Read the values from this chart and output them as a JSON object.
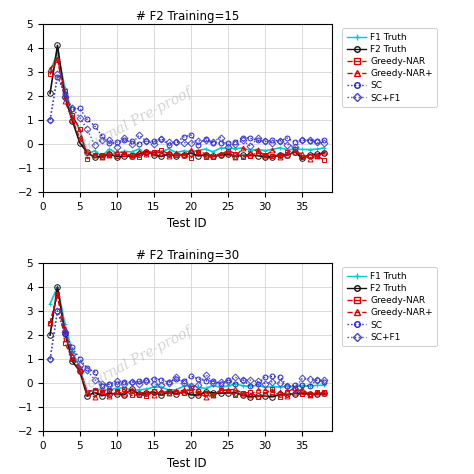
{
  "title1": "# F2 Training=15",
  "title2": "# F2 Training=30",
  "xlabel": "Test ID",
  "ylim": [
    -2,
    5
  ],
  "xlim": [
    0.5,
    39
  ],
  "xticks": [
    0,
    5,
    10,
    15,
    20,
    25,
    30,
    35
  ],
  "yticks": [
    -2,
    -1,
    0,
    1,
    2,
    3,
    4,
    5
  ],
  "legend_labels": [
    "F1 Truth",
    "F2 Truth",
    "Greedy-NAR",
    "Greedy-NAR+",
    "SC",
    "SC+F1"
  ],
  "colors": {
    "F1 Truth": "#00d8d8",
    "F2 Truth": "#000000",
    "Greedy-NAR": "#dd0000",
    "Greedy-NAR+": "#cc2222",
    "SC": "#2222cc",
    "SC+F1": "#4444dd"
  },
  "markers": {
    "F1 Truth": "+",
    "F2 Truth": "o",
    "Greedy-NAR": "s",
    "Greedy-NAR+": "^",
    "SC": "o",
    "SC+F1": "D"
  },
  "linestyles": {
    "F1 Truth": "-",
    "F2 Truth": "-",
    "Greedy-NAR": "--",
    "Greedy-NAR+": "--",
    "SC": ":",
    "SC+F1": ":"
  }
}
